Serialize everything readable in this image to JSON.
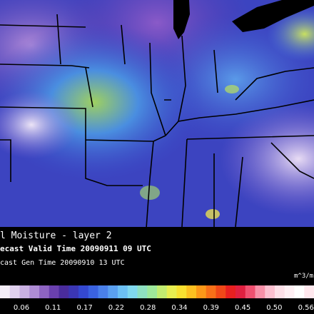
{
  "map": {
    "title": "l Moisture - layer 2",
    "valid_time": "ecast Valid Time 20090911 09 UTC",
    "gen_time": "cast Gen Time 20090910 13 UTC",
    "units": "m^3/m"
  },
  "colorbar": {
    "labels": [
      "0.06",
      "0.11",
      "0.17",
      "0.22",
      "0.28",
      "0.34",
      "0.39",
      "0.45",
      "0.50",
      "0.56"
    ],
    "colors": [
      "#f4eef8",
      "#e0d0ee",
      "#c9b0e2",
      "#ae8cd4",
      "#8e64c2",
      "#6a40ae",
      "#4a2c9c",
      "#3b36b4",
      "#3448d0",
      "#3a62e0",
      "#4a80ea",
      "#5aa0f0",
      "#6cc0f4",
      "#80d8ee",
      "#8ee0c0",
      "#9ee89a",
      "#c2ec70",
      "#e8ee50",
      "#f8e030",
      "#fcc020",
      "#fc9818",
      "#f87018",
      "#f04818",
      "#e82020",
      "#e02040",
      "#f05070",
      "#f890a8",
      "#fcc0d0",
      "#fde0e8",
      "#fff0f4",
      "#ffffff",
      "#ffe8ee"
    ]
  }
}
